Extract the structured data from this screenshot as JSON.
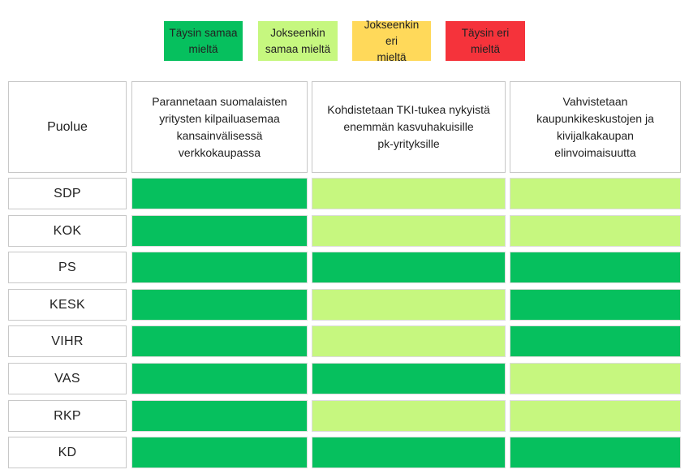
{
  "colors": {
    "full_agree": "#06c05e",
    "partly_agree": "#c6f77f",
    "partly_disagree": "#ffd95a",
    "full_disagree": "#f5333b"
  },
  "legend": [
    {
      "key": "full_agree",
      "label": "Täysin samaa\nmieltä"
    },
    {
      "key": "partly_agree",
      "label": "Jokseenkin\nsamaa mieltä"
    },
    {
      "key": "partly_disagree",
      "label": "Jokseenkin eri\nmieltä"
    },
    {
      "key": "full_disagree",
      "label": "Täysin eri\nmieltä"
    }
  ],
  "table": {
    "party_header": "Puolue",
    "columns": [
      "Parannetaan suomalaisten\nyritysten kilpailuasemaa\nkansainvälisessä verkkokaupassa",
      "Kohdistetaan TKI-tukea nykyistä\nenemmän kasvuhakuisille\npk-yrityksille",
      "Vahvistetaan\nkaupunkikeskustojen ja\nkivijalkakaupan\nelinvoimaisuutta"
    ]
  },
  "chart_data": {
    "type": "heatmap",
    "categories": [
      "SDP",
      "KOK",
      "PS",
      "KESK",
      "VIHR",
      "VAS",
      "RKP",
      "KD"
    ],
    "series": [
      {
        "name": "Parannetaan suomalaisten yritysten kilpailuasemaa kansainvälisessä verkkokaupassa",
        "values": [
          "full_agree",
          "full_agree",
          "full_agree",
          "full_agree",
          "full_agree",
          "full_agree",
          "full_agree",
          "full_agree"
        ]
      },
      {
        "name": "Kohdistetaan TKI-tukea nykyistä enemmän kasvuhakuisille pk-yrityksille",
        "values": [
          "partly_agree",
          "partly_agree",
          "full_agree",
          "partly_agree",
          "partly_agree",
          "full_agree",
          "partly_agree",
          "full_agree"
        ]
      },
      {
        "name": "Vahvistetaan kaupunkikeskustojen ja kivijalkakaupan elinvoimaisuutta",
        "values": [
          "partly_agree",
          "partly_agree",
          "full_agree",
          "full_agree",
          "full_agree",
          "partly_agree",
          "partly_agree",
          "full_agree"
        ]
      }
    ]
  }
}
